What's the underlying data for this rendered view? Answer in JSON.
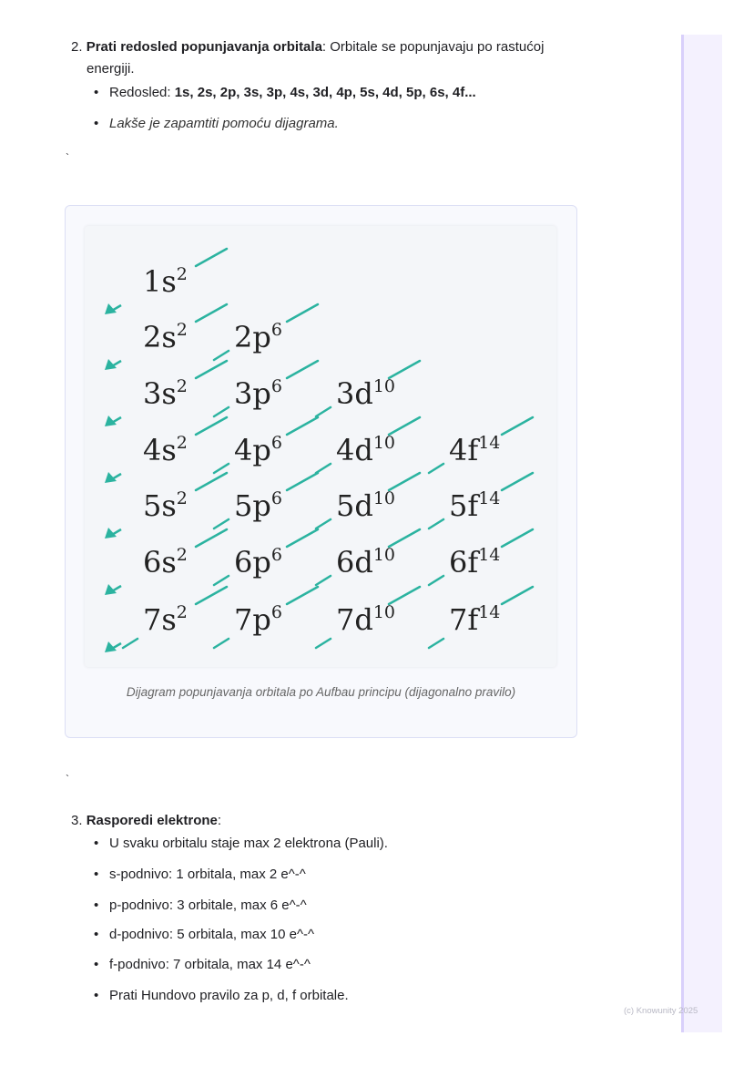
{
  "step2": {
    "number": "2.",
    "title": "Prati redosled popunjavanja orbitala",
    "rest": ": Orbitale se popunjavaju po rastućoj",
    "rest2": "energiji.",
    "bullets": [
      {
        "label": "Redosled: ",
        "value": "1s, 2s, 2p, 3s, 3p, 4s, 3d, 4p, 5s, 4d, 5p, 6s, 4f..."
      },
      {
        "label": "Lakše je zapamtiti pomoću dijagrama."
      }
    ]
  },
  "backtick1": "`",
  "figure": {
    "caption": "Dijagram popunjavanja orbitala po Aufbau principu (dijagonalno pravilo)",
    "accent": "#2bb3a0",
    "rows": [
      [
        {
          "base": "1s",
          "sup": "2"
        }
      ],
      [
        {
          "base": "2s",
          "sup": "2"
        },
        {
          "base": "2p",
          "sup": "6"
        }
      ],
      [
        {
          "base": "3s",
          "sup": "2"
        },
        {
          "base": "3p",
          "sup": "6"
        },
        {
          "base": "3d",
          "sup": "10"
        }
      ],
      [
        {
          "base": "4s",
          "sup": "2"
        },
        {
          "base": "4p",
          "sup": "6"
        },
        {
          "base": "4d",
          "sup": "10"
        },
        {
          "base": "4f",
          "sup": "14"
        }
      ],
      [
        {
          "base": "5s",
          "sup": "2"
        },
        {
          "base": "5p",
          "sup": "6"
        },
        {
          "base": "5d",
          "sup": "10"
        },
        {
          "base": "5f",
          "sup": "14"
        }
      ],
      [
        {
          "base": "6s",
          "sup": "2"
        },
        {
          "base": "6p",
          "sup": "6"
        },
        {
          "base": "6d",
          "sup": "10"
        },
        {
          "base": "6f",
          "sup": "14"
        }
      ],
      [
        {
          "base": "7s",
          "sup": "2"
        },
        {
          "base": "7p",
          "sup": "6"
        },
        {
          "base": "7d",
          "sup": "10"
        },
        {
          "base": "7f",
          "sup": "14"
        }
      ]
    ]
  },
  "backtick2": "`",
  "step3": {
    "number": "3.",
    "title": "Rasporedi elektrone",
    "colon": ":",
    "bullets": [
      "U svaku orbitalu staje max 2 elektrona (Pauli).",
      "s-podnivo: 1 orbitala, max 2 e^-^",
      "p-podnivo: 3 orbitale, max 6 e^-^",
      "d-podnivo: 5 orbitala, max 10 e^-^",
      "f-podnivo: 7 orbitala, max 14 e^-^",
      "Prati Hundovo pravilo za p, d, f orbitale."
    ]
  },
  "footer": "(c) Knowunity 2025"
}
